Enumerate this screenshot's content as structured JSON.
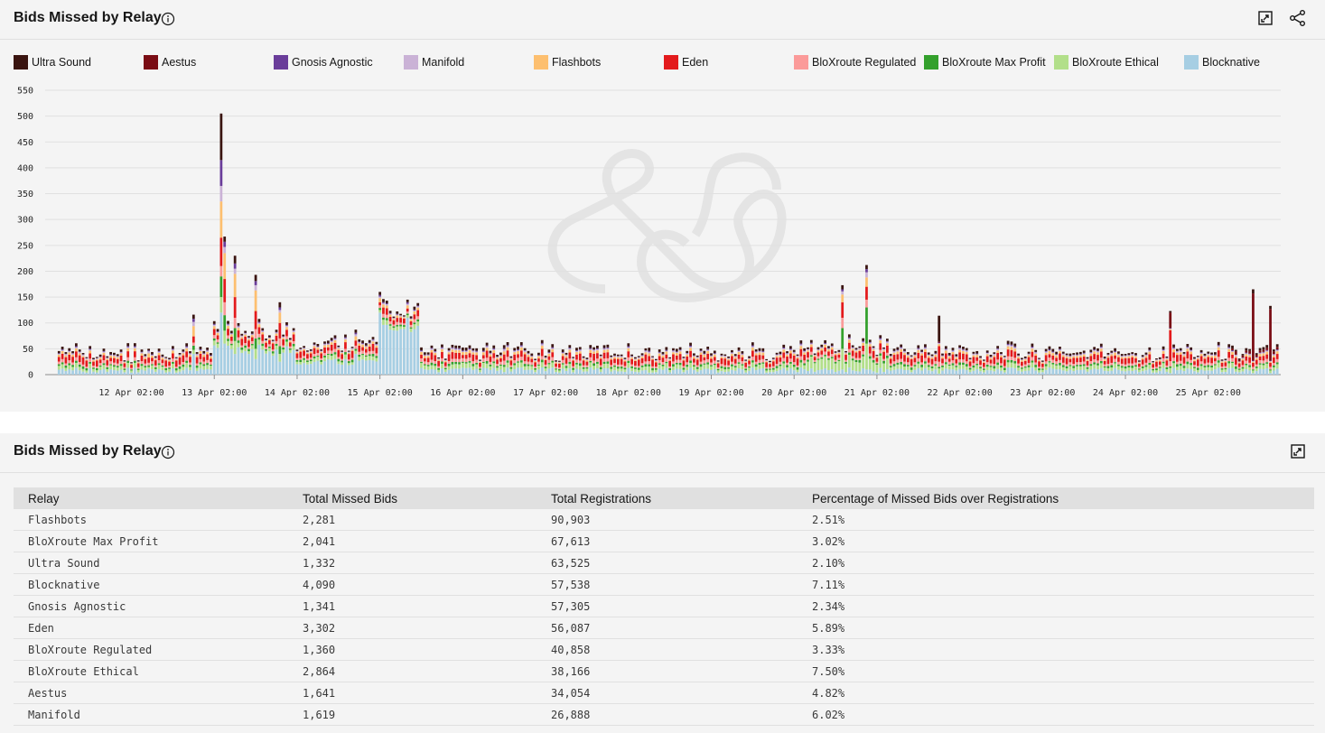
{
  "chart_panel": {
    "title": "Bids Missed by Relay"
  },
  "table_panel": {
    "title": "Bids Missed by Relay"
  },
  "chart_data": {
    "type": "bar",
    "stacked": true,
    "title": "Bids Missed by Relay",
    "ylim": [
      0,
      550
    ],
    "yticks": [
      0,
      50,
      100,
      150,
      200,
      250,
      300,
      350,
      400,
      450,
      500,
      550
    ],
    "xlim_hours": [
      -25,
      333
    ],
    "xticks": [
      {
        "label": "12 Apr 02:00",
        "hour": 0
      },
      {
        "label": "13 Apr 02:00",
        "hour": 24
      },
      {
        "label": "14 Apr 02:00",
        "hour": 48
      },
      {
        "label": "15 Apr 02:00",
        "hour": 72
      },
      {
        "label": "16 Apr 02:00",
        "hour": 96
      },
      {
        "label": "17 Apr 02:00",
        "hour": 120
      },
      {
        "label": "18 Apr 02:00",
        "hour": 144
      },
      {
        "label": "19 Apr 02:00",
        "hour": 168
      },
      {
        "label": "20 Apr 02:00",
        "hour": 192
      },
      {
        "label": "21 Apr 02:00",
        "hour": 216
      },
      {
        "label": "22 Apr 02:00",
        "hour": 240
      },
      {
        "label": "23 Apr 02:00",
        "hour": 264
      },
      {
        "label": "24 Apr 02:00",
        "hour": 288
      },
      {
        "label": "25 Apr 02:00",
        "hour": 312
      }
    ],
    "series": [
      {
        "name": "Ultra Sound",
        "color": "#3a1410"
      },
      {
        "name": "Aestus",
        "color": "#7a0c14"
      },
      {
        "name": "Gnosis Agnostic",
        "color": "#6a3d9a"
      },
      {
        "name": "Manifold",
        "color": "#cab2d6"
      },
      {
        "name": "Flashbots",
        "color": "#fdbf6f"
      },
      {
        "name": "Eden",
        "color": "#e31a1c"
      },
      {
        "name": "BloXroute Regulated",
        "color": "#fb9a99"
      },
      {
        "name": "BloXroute Max Profit",
        "color": "#33a02c"
      },
      {
        "name": "BloXroute Ethical",
        "color": "#b2df8a"
      },
      {
        "name": "Blocknative",
        "color": "#a6cee3"
      }
    ],
    "bars": [
      {
        "hour": 5,
        "values": [
          3,
          0,
          2,
          4,
          8,
          10,
          5,
          3,
          3,
          12
        ]
      },
      {
        "hour": 18,
        "values": [
          8,
          0,
          6,
          8,
          20,
          12,
          6,
          8,
          8,
          40
        ]
      },
      {
        "hour": 26,
        "values": [
          90,
          0,
          50,
          30,
          70,
          55,
          20,
          40,
          30,
          120
        ]
      },
      {
        "hour": 27,
        "values": [
          10,
          0,
          10,
          12,
          50,
          45,
          25,
          30,
          25,
          60
        ]
      },
      {
        "hour": 30,
        "values": [
          15,
          0,
          10,
          10,
          45,
          40,
          20,
          25,
          25,
          40
        ]
      },
      {
        "hour": 36,
        "values": [
          12,
          0,
          8,
          10,
          40,
          35,
          18,
          20,
          20,
          30
        ]
      },
      {
        "hour": 43,
        "values": [
          10,
          0,
          5,
          5,
          20,
          30,
          15,
          15,
          15,
          25
        ]
      },
      {
        "hour": 65,
        "values": [
          6,
          0,
          3,
          4,
          8,
          10,
          6,
          4,
          6,
          40
        ]
      },
      {
        "hour": 72,
        "values": [
          6,
          0,
          3,
          3,
          8,
          6,
          5,
          4,
          5,
          120
        ]
      },
      {
        "hour": 80,
        "values": [
          5,
          0,
          3,
          3,
          6,
          6,
          4,
          3,
          5,
          110
        ]
      },
      {
        "hour": 108,
        "values": [
          6,
          0,
          2,
          4,
          6,
          12,
          8,
          4,
          10,
          5
        ]
      },
      {
        "hour": 150,
        "values": [
          6,
          0,
          2,
          3,
          5,
          10,
          6,
          4,
          12,
          4
        ]
      },
      {
        "hour": 206,
        "values": [
          8,
          0,
          4,
          6,
          15,
          30,
          20,
          40,
          40,
          10
        ]
      },
      {
        "hour": 213,
        "values": [
          8,
          0,
          6,
          10,
          18,
          25,
          15,
          70,
          50,
          10
        ]
      },
      {
        "hour": 234,
        "values": [
          50,
          2,
          1,
          2,
          4,
          30,
          10,
          3,
          10,
          2
        ]
      },
      {
        "hour": 301,
        "values": [
          3,
          30,
          1,
          1,
          2,
          60,
          10,
          3,
          10,
          3
        ]
      },
      {
        "hour": 325,
        "values": [
          8,
          130,
          1,
          1,
          2,
          8,
          5,
          2,
          5,
          3
        ]
      },
      {
        "hour": 330,
        "values": [
          6,
          100,
          1,
          1,
          2,
          8,
          5,
          2,
          5,
          3
        ]
      }
    ]
  },
  "table": {
    "headers": [
      "Relay",
      "Total Missed Bids",
      "Total Registrations",
      "Percentage of Missed Bids over Registrations"
    ],
    "rows": [
      [
        "Flashbots",
        "2,281",
        "90,903",
        "2.51%"
      ],
      [
        "BloXroute Max Profit",
        "2,041",
        "67,613",
        "3.02%"
      ],
      [
        "Ultra Sound",
        "1,332",
        "63,525",
        "2.10%"
      ],
      [
        "Blocknative",
        "4,090",
        "57,538",
        "7.11%"
      ],
      [
        "Gnosis Agnostic",
        "1,341",
        "57,305",
        "2.34%"
      ],
      [
        "Eden",
        "3,302",
        "56,087",
        "5.89%"
      ],
      [
        "BloXroute Regulated",
        "1,360",
        "40,858",
        "3.33%"
      ],
      [
        "BloXroute Ethical",
        "2,864",
        "38,166",
        "7.50%"
      ],
      [
        "Aestus",
        "1,641",
        "34,054",
        "4.82%"
      ],
      [
        "Manifold",
        "1,619",
        "26,888",
        "6.02%"
      ]
    ]
  }
}
